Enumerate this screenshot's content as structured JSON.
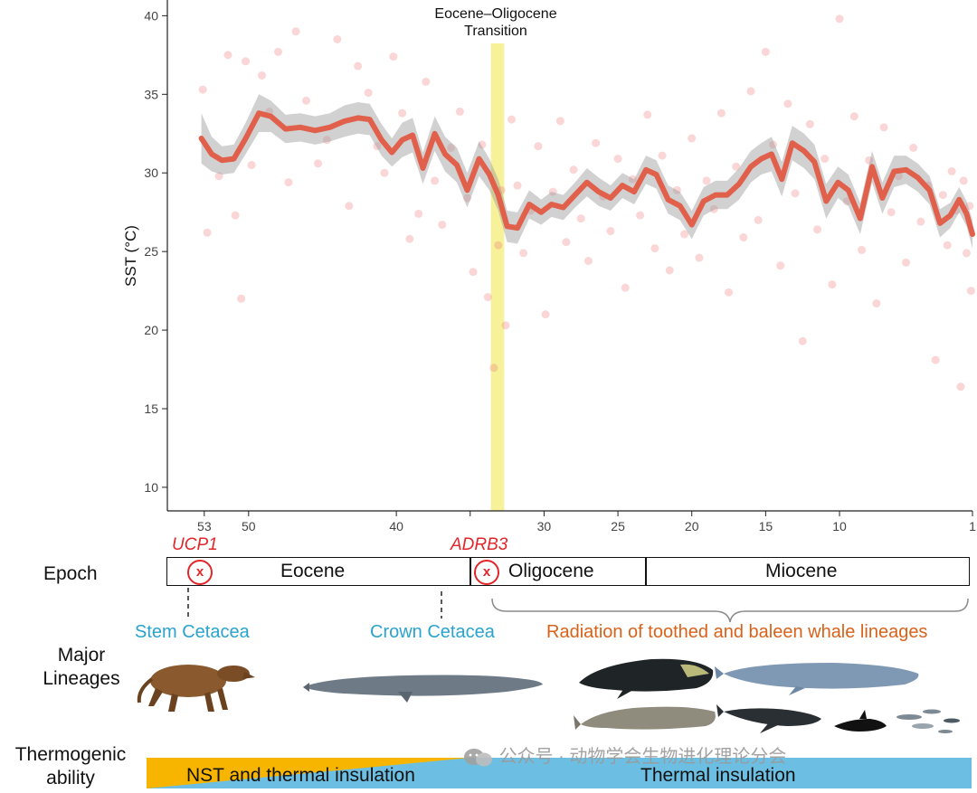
{
  "chart_data": {
    "type": "scatter",
    "subtype": "scatter with smoothed line and confidence band",
    "title": "",
    "xlabel": "",
    "ylabel": "SST (°C)",
    "xlim": [
      55.5,
      1
    ],
    "ylim": [
      8.5,
      41
    ],
    "x_ticks": [
      53,
      50,
      40,
      35,
      30,
      25,
      20,
      15,
      10,
      1
    ],
    "x_tick_labels": [
      "53",
      "50",
      "40",
      "",
      "30",
      "25",
      "20",
      "15",
      "10",
      "1"
    ],
    "y_ticks": [
      10,
      15,
      20,
      25,
      30,
      35,
      40
    ],
    "y_tick_labels": [
      "10",
      "15",
      "20",
      "25",
      "30",
      "35",
      "40"
    ],
    "transition_band": {
      "label": "Eocene–Oligocene\nTransition",
      "x_from": 33.6,
      "x_to": 32.7,
      "color": "#f7f19a"
    },
    "series": [
      {
        "name": "SST mean",
        "color": "#e0604b",
        "x": [
          53.2,
          52.5,
          51.8,
          51.0,
          50.2,
          49.3,
          48.5,
          47.5,
          46.5,
          45.5,
          44.5,
          43.5,
          42.6,
          41.8,
          41.0,
          40.3,
          39.6,
          38.9,
          38.2,
          37.4,
          36.7,
          35.9,
          35.2,
          34.4,
          33.7,
          33.1,
          32.5,
          31.8,
          31.0,
          30.2,
          29.5,
          28.7,
          27.9,
          27.1,
          26.3,
          25.5,
          24.7,
          23.9,
          23.1,
          22.4,
          21.6,
          20.8,
          20.0,
          19.2,
          18.4,
          17.6,
          16.8,
          16.0,
          15.3,
          14.6,
          13.9,
          13.2,
          12.4,
          11.7,
          10.9,
          10.1,
          9.4,
          8.6,
          7.8,
          7.1,
          6.3,
          5.5,
          4.7,
          3.9,
          3.2,
          2.5,
          1.9,
          1.4,
          1.0
        ],
        "values": [
          32.2,
          31.2,
          30.8,
          30.9,
          32.2,
          33.8,
          33.6,
          32.8,
          32.9,
          32.7,
          32.9,
          33.3,
          33.5,
          33.4,
          32.1,
          31.3,
          32.1,
          32.4,
          30.3,
          32.5,
          31.2,
          30.5,
          28.9,
          30.9,
          29.9,
          28.6,
          26.6,
          26.5,
          28.0,
          27.5,
          28.0,
          27.8,
          28.6,
          29.4,
          28.8,
          28.4,
          29.2,
          28.8,
          30.2,
          29.9,
          28.3,
          27.9,
          26.7,
          28.2,
          28.6,
          28.6,
          29.3,
          30.4,
          30.9,
          31.2,
          29.6,
          31.9,
          31.4,
          30.7,
          28.2,
          29.4,
          28.9,
          27.1,
          30.4,
          28.4,
          30.1,
          30.2,
          29.7,
          28.9,
          26.8,
          27.3,
          28.3,
          27.4,
          26.1
        ],
        "ci_halfwidth": [
          1.6,
          1.1,
          0.9,
          0.9,
          1.0,
          1.2,
          1.0,
          0.9,
          0.9,
          0.9,
          0.9,
          1.0,
          1.0,
          1.0,
          1.0,
          0.9,
          1.1,
          1.1,
          1.0,
          1.1,
          1.1,
          1.1,
          1.1,
          1.1,
          1.0,
          1.0,
          1.0,
          1.0,
          0.9,
          0.8,
          0.8,
          0.8,
          0.8,
          0.9,
          0.9,
          0.8,
          0.8,
          0.8,
          0.9,
          0.9,
          0.9,
          0.9,
          0.9,
          0.9,
          0.9,
          0.9,
          1.0,
          1.0,
          1.0,
          1.1,
          1.1,
          1.1,
          1.1,
          1.1,
          1.1,
          1.0,
          1.0,
          1.0,
          1.0,
          1.0,
          1.0,
          0.9,
          0.9,
          0.9,
          0.9,
          0.8,
          0.8,
          0.8,
          0.9
        ]
      },
      {
        "name": "SST observations",
        "color": "#ee6a6a",
        "points": [
          [
            53.1,
            35.3
          ],
          [
            52.8,
            26.2
          ],
          [
            52.0,
            29.8
          ],
          [
            51.4,
            37.5
          ],
          [
            50.9,
            27.3
          ],
          [
            50.5,
            22.0
          ],
          [
            50.2,
            37.1
          ],
          [
            49.8,
            30.5
          ],
          [
            49.1,
            36.2
          ],
          [
            48.6,
            33.9
          ],
          [
            48.0,
            37.7
          ],
          [
            47.3,
            29.4
          ],
          [
            46.8,
            39.0
          ],
          [
            46.1,
            34.6
          ],
          [
            45.3,
            30.6
          ],
          [
            44.7,
            32.1
          ],
          [
            44.0,
            38.5
          ],
          [
            43.2,
            27.9
          ],
          [
            42.6,
            36.8
          ],
          [
            41.9,
            35.1
          ],
          [
            41.3,
            31.7
          ],
          [
            40.8,
            30.0
          ],
          [
            40.2,
            37.4
          ],
          [
            39.6,
            33.8
          ],
          [
            39.1,
            25.8
          ],
          [
            38.5,
            27.4
          ],
          [
            38.0,
            35.8
          ],
          [
            37.4,
            29.5
          ],
          [
            36.9,
            26.7
          ],
          [
            36.3,
            31.6
          ],
          [
            35.7,
            33.9
          ],
          [
            35.2,
            28.4
          ],
          [
            34.8,
            23.7
          ],
          [
            34.2,
            31.8
          ],
          [
            33.8,
            22.1
          ],
          [
            33.4,
            17.6
          ],
          [
            33.1,
            25.4
          ],
          [
            32.9,
            28.9
          ],
          [
            32.6,
            20.3
          ],
          [
            32.2,
            33.4
          ],
          [
            31.8,
            29.2
          ],
          [
            31.4,
            24.9
          ],
          [
            30.9,
            27.6
          ],
          [
            30.4,
            31.7
          ],
          [
            29.9,
            21.0
          ],
          [
            29.4,
            28.8
          ],
          [
            28.9,
            33.3
          ],
          [
            28.5,
            25.6
          ],
          [
            28.0,
            30.2
          ],
          [
            27.5,
            27.1
          ],
          [
            27.0,
            24.4
          ],
          [
            26.5,
            31.9
          ],
          [
            26.0,
            28.5
          ],
          [
            25.5,
            26.3
          ],
          [
            25.0,
            30.9
          ],
          [
            24.5,
            22.7
          ],
          [
            24.0,
            29.6
          ],
          [
            23.5,
            27.3
          ],
          [
            23.0,
            33.7
          ],
          [
            22.5,
            25.2
          ],
          [
            22.0,
            31.1
          ],
          [
            21.5,
            23.8
          ],
          [
            21.0,
            28.9
          ],
          [
            20.5,
            26.1
          ],
          [
            20.0,
            32.2
          ],
          [
            19.5,
            24.6
          ],
          [
            19.0,
            29.5
          ],
          [
            18.5,
            27.7
          ],
          [
            18.0,
            33.8
          ],
          [
            17.5,
            22.4
          ],
          [
            17.0,
            30.4
          ],
          [
            16.5,
            25.9
          ],
          [
            16.0,
            35.2
          ],
          [
            15.5,
            27.0
          ],
          [
            15.0,
            37.7
          ],
          [
            14.5,
            31.8
          ],
          [
            14.0,
            24.1
          ],
          [
            13.5,
            34.4
          ],
          [
            13.0,
            28.7
          ],
          [
            12.5,
            19.3
          ],
          [
            12.0,
            33.1
          ],
          [
            11.5,
            26.4
          ],
          [
            11.0,
            30.9
          ],
          [
            10.5,
            22.9
          ],
          [
            10.0,
            39.8
          ],
          [
            9.5,
            28.2
          ],
          [
            9.0,
            33.6
          ],
          [
            8.5,
            25.1
          ],
          [
            8.0,
            30.8
          ],
          [
            7.5,
            21.7
          ],
          [
            7.0,
            32.9
          ],
          [
            6.5,
            27.5
          ],
          [
            6.0,
            29.8
          ],
          [
            5.5,
            24.3
          ],
          [
            5.0,
            31.6
          ],
          [
            4.5,
            26.9
          ],
          [
            4.0,
            29.2
          ],
          [
            3.5,
            18.1
          ],
          [
            3.0,
            28.6
          ],
          [
            2.7,
            25.4
          ],
          [
            2.4,
            30.1
          ],
          [
            2.1,
            27.6
          ],
          [
            1.8,
            16.4
          ],
          [
            1.6,
            29.5
          ],
          [
            1.4,
            24.9
          ],
          [
            1.2,
            27.9
          ],
          [
            1.1,
            22.5
          ]
        ]
      }
    ],
    "epochs": [
      {
        "name": "Eocene",
        "from": 55.5,
        "to": 34.0
      },
      {
        "name": "Oligocene",
        "from": 34.0,
        "to": 23.0
      },
      {
        "name": "Miocene",
        "from": 23.0,
        "to": 0.0
      }
    ],
    "gene_losses": [
      {
        "gene": "UCP1",
        "x": 53.0
      },
      {
        "gene": "ADRB3",
        "x": 34.2
      }
    ]
  },
  "labels": {
    "epoch_row": "Epoch",
    "major_lineages_row": "Major\nLineages",
    "thermogenic_row": "Thermogenic\nability",
    "stem_cetacea": "Stem Cetacea",
    "crown_cetacea": "Crown Cetacea",
    "radiation": "Radiation of toothed and baleen whale lineages",
    "nst_band": "NST and thermal insulation",
    "insulation_band": "Thermal insulation",
    "gene_loss_mark": "x",
    "watermark": "公众号 · 动物学会生物进化理论分会"
  },
  "colors": {
    "cetacea_blue": "#2aa3cf",
    "radiation_orange": "#d9621a",
    "gene_red": "#e0262b",
    "nst_yellow": "#f7b500",
    "insulation_blue": "#6cbfe2"
  }
}
